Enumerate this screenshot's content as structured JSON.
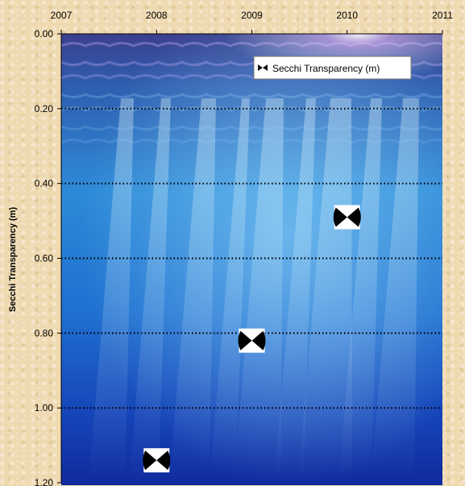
{
  "chart_data": {
    "type": "scatter",
    "title": "",
    "xlabel": "",
    "ylabel": "Secchi Transparency (m)",
    "x_ticks": [
      "2007",
      "2008",
      "2009",
      "2010",
      "2011"
    ],
    "y_ticks": [
      "0.00",
      "0.20",
      "0.40",
      "0.60",
      "0.80",
      "1.00",
      "1.20"
    ],
    "xlim": [
      2007,
      2011
    ],
    "ylim": [
      0,
      1.2
    ],
    "y_inverted": true,
    "x_axis_position": "top",
    "grid": "horizontal dotted",
    "legend_position": "top-right",
    "background": "underwater photo",
    "marker": "secchi-disk-icon",
    "series": [
      {
        "name": "Secchi Transparency (m)",
        "points": [
          {
            "x": 2008,
            "y": 1.14
          },
          {
            "x": 2009,
            "y": 0.82
          },
          {
            "x": 2010,
            "y": 0.49
          }
        ]
      }
    ]
  }
}
